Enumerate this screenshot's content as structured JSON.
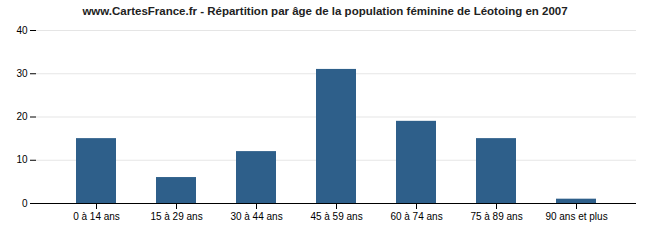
{
  "chart_data": {
    "type": "bar",
    "title": "www.CartesFrance.fr - Répartition par âge de la population féminine de Léotoing en 2007",
    "categories": [
      "0 à 14 ans",
      "15 à 29 ans",
      "30 à 44 ans",
      "45 à 59 ans",
      "60 à 74 ans",
      "75 à 89 ans",
      "90 ans et plus"
    ],
    "values": [
      15,
      6,
      12,
      31,
      19,
      15,
      1
    ],
    "color": "#2e5f8a",
    "ylim": [
      0,
      40
    ],
    "yticks": [
      0,
      10,
      20,
      30,
      40
    ],
    "grid": true
  }
}
